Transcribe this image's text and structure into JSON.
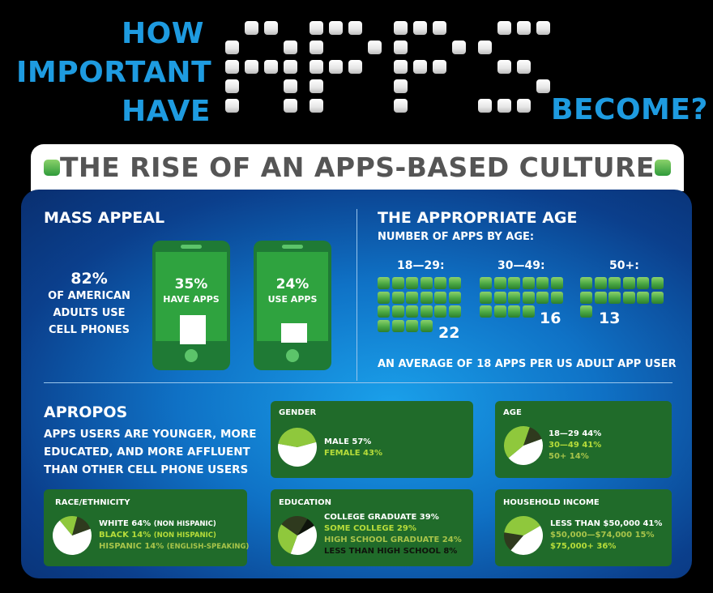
{
  "header": {
    "word_how": "HOW",
    "word_important": "IMPORTANT",
    "word_have": "HAVE",
    "word_apps": "APPS",
    "word_become": "BECOME?"
  },
  "banner": {
    "title": "THE RISE OF AN APPS-BASED CULTURE"
  },
  "mass_appeal": {
    "title": "MASS APPEAL",
    "cell_phone_pct": "82%",
    "cell_phone_label_1": "OF AMERICAN",
    "cell_phone_label_2": "ADULTS USE",
    "cell_phone_label_3": "CELL PHONES",
    "have_apps_pct": "35%",
    "have_apps_label": "HAVE APPS",
    "use_apps_pct": "24%",
    "use_apps_label": "USE APPS"
  },
  "appropriate_age": {
    "title": "THE APPROPRIATE AGE",
    "subtitle": "NUMBER OF APPS BY AGE:",
    "groups": [
      {
        "label": "18—29:",
        "count": "22",
        "value": 22
      },
      {
        "label": "30—49:",
        "count": "16",
        "value": 16
      },
      {
        "label": "50+:",
        "count": "13",
        "value": 13
      }
    ],
    "average_note": "AN AVERAGE OF 18 APPS PER US ADULT APP USER"
  },
  "apropos": {
    "title": "APROPOS",
    "line1": "APPS USERS ARE YOUNGER, MORE",
    "line2": "EDUCATED, AND MORE AFFLUENT",
    "line3": "THAN OTHER CELL PHONE USERS"
  },
  "colors": {
    "title_blue": "#1e9be0",
    "green_box": "#206b2a",
    "slice_white": "#ffffff",
    "slice_lime": "#8fc83c",
    "slice_dark": "#2f3a1e",
    "slice_black": "#0f140c",
    "label_lime": "#b6dc3a",
    "label_olive": "#a8c44a"
  },
  "chart_data": [
    {
      "type": "pie",
      "title": "GENDER",
      "slices": [
        {
          "label": "MALE 57%",
          "value": 57,
          "color": "#ffffff",
          "label_color": "#ffffff"
        },
        {
          "label": "FEMALE 43%",
          "value": 43,
          "color": "#8fc83c",
          "label_color": "#b6dc3a"
        }
      ]
    },
    {
      "type": "pie",
      "title": "AGE",
      "slices": [
        {
          "label": "18—29 44%",
          "value": 44,
          "color": "#ffffff",
          "label_color": "#ffffff"
        },
        {
          "label": "30—49 41%",
          "value": 41,
          "color": "#8fc83c",
          "label_color": "#b6dc3a"
        },
        {
          "label": "50+ 14%",
          "value": 14,
          "color": "#2f3a1e",
          "label_color": "#a8c44a"
        }
      ]
    },
    {
      "type": "pie",
      "title": "RACE/ETHNICITY",
      "slices": [
        {
          "label": "WHITE 64%",
          "note": "(NON HISPANIC)",
          "value": 64,
          "color": "#ffffff",
          "label_color": "#ffffff"
        },
        {
          "label": "BLACK 14%",
          "note": "(NON HISPANIC)",
          "value": 14,
          "color": "#8fc83c",
          "label_color": "#b6dc3a"
        },
        {
          "label": "HISPANIC 14%",
          "note": "(ENGLISH-SPEAKING)",
          "value": 14,
          "color": "#2f3a1e",
          "label_color": "#a8c44a"
        }
      ]
    },
    {
      "type": "pie",
      "title": "EDUCATION",
      "slices": [
        {
          "label": "COLLEGE GRADUATE 39%",
          "value": 39,
          "color": "#ffffff",
          "label_color": "#ffffff"
        },
        {
          "label": "SOME COLLEGE 29%",
          "value": 29,
          "color": "#8fc83c",
          "label_color": "#b6dc3a"
        },
        {
          "label": "HIGH SCHOOL GRADUATE 24%",
          "value": 24,
          "color": "#2f3a1e",
          "label_color": "#a8c44a"
        },
        {
          "label": "LESS THAN HIGH SCHOOL 8%",
          "value": 8,
          "color": "#0f140c",
          "label_color": "#0f140c"
        }
      ]
    },
    {
      "type": "pie",
      "title": "HOUSEHOLD INCOME",
      "slices": [
        {
          "label": "LESS THAN $50,000 41%",
          "value": 41,
          "color": "#ffffff",
          "label_color": "#ffffff"
        },
        {
          "label": "$50,000—$74,000 15%",
          "value": 15,
          "color": "#2f3a1e",
          "label_color": "#a8c44a"
        },
        {
          "label": "$75,000+ 36%",
          "value": 36,
          "color": "#8fc83c",
          "label_color": "#b6dc3a"
        }
      ]
    }
  ]
}
